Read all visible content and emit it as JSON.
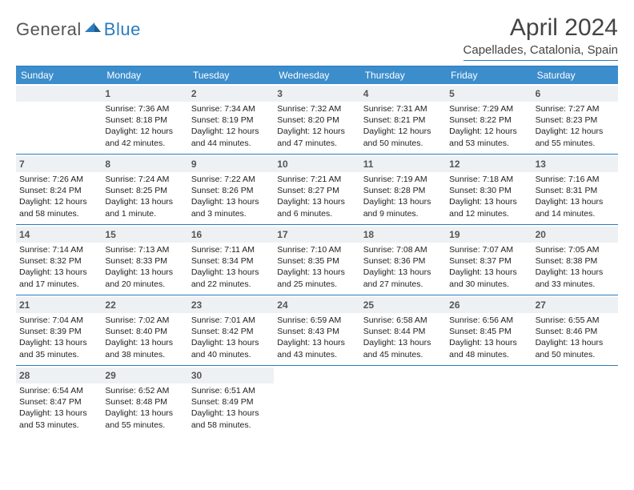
{
  "logo": {
    "text1": "General",
    "text2": "Blue"
  },
  "title": "April 2024",
  "location": "Capellades, Catalonia, Spain",
  "colors": {
    "brand_blue": "#3c8dcc",
    "rule_blue": "#2b7bbf",
    "daynum_bg": "#eef1f3",
    "text_dark": "#222222",
    "text_mid": "#555555",
    "page_bg": "#ffffff"
  },
  "weekdays": [
    "Sunday",
    "Monday",
    "Tuesday",
    "Wednesday",
    "Thursday",
    "Friday",
    "Saturday"
  ],
  "first_weekday_offset": 1,
  "days": [
    {
      "n": 1,
      "sunrise": "7:36 AM",
      "sunset": "8:18 PM",
      "daylight": "12 hours and 42 minutes."
    },
    {
      "n": 2,
      "sunrise": "7:34 AM",
      "sunset": "8:19 PM",
      "daylight": "12 hours and 44 minutes."
    },
    {
      "n": 3,
      "sunrise": "7:32 AM",
      "sunset": "8:20 PM",
      "daylight": "12 hours and 47 minutes."
    },
    {
      "n": 4,
      "sunrise": "7:31 AM",
      "sunset": "8:21 PM",
      "daylight": "12 hours and 50 minutes."
    },
    {
      "n": 5,
      "sunrise": "7:29 AM",
      "sunset": "8:22 PM",
      "daylight": "12 hours and 53 minutes."
    },
    {
      "n": 6,
      "sunrise": "7:27 AM",
      "sunset": "8:23 PM",
      "daylight": "12 hours and 55 minutes."
    },
    {
      "n": 7,
      "sunrise": "7:26 AM",
      "sunset": "8:24 PM",
      "daylight": "12 hours and 58 minutes."
    },
    {
      "n": 8,
      "sunrise": "7:24 AM",
      "sunset": "8:25 PM",
      "daylight": "13 hours and 1 minute."
    },
    {
      "n": 9,
      "sunrise": "7:22 AM",
      "sunset": "8:26 PM",
      "daylight": "13 hours and 3 minutes."
    },
    {
      "n": 10,
      "sunrise": "7:21 AM",
      "sunset": "8:27 PM",
      "daylight": "13 hours and 6 minutes."
    },
    {
      "n": 11,
      "sunrise": "7:19 AM",
      "sunset": "8:28 PM",
      "daylight": "13 hours and 9 minutes."
    },
    {
      "n": 12,
      "sunrise": "7:18 AM",
      "sunset": "8:30 PM",
      "daylight": "13 hours and 12 minutes."
    },
    {
      "n": 13,
      "sunrise": "7:16 AM",
      "sunset": "8:31 PM",
      "daylight": "13 hours and 14 minutes."
    },
    {
      "n": 14,
      "sunrise": "7:14 AM",
      "sunset": "8:32 PM",
      "daylight": "13 hours and 17 minutes."
    },
    {
      "n": 15,
      "sunrise": "7:13 AM",
      "sunset": "8:33 PM",
      "daylight": "13 hours and 20 minutes."
    },
    {
      "n": 16,
      "sunrise": "7:11 AM",
      "sunset": "8:34 PM",
      "daylight": "13 hours and 22 minutes."
    },
    {
      "n": 17,
      "sunrise": "7:10 AM",
      "sunset": "8:35 PM",
      "daylight": "13 hours and 25 minutes."
    },
    {
      "n": 18,
      "sunrise": "7:08 AM",
      "sunset": "8:36 PM",
      "daylight": "13 hours and 27 minutes."
    },
    {
      "n": 19,
      "sunrise": "7:07 AM",
      "sunset": "8:37 PM",
      "daylight": "13 hours and 30 minutes."
    },
    {
      "n": 20,
      "sunrise": "7:05 AM",
      "sunset": "8:38 PM",
      "daylight": "13 hours and 33 minutes."
    },
    {
      "n": 21,
      "sunrise": "7:04 AM",
      "sunset": "8:39 PM",
      "daylight": "13 hours and 35 minutes."
    },
    {
      "n": 22,
      "sunrise": "7:02 AM",
      "sunset": "8:40 PM",
      "daylight": "13 hours and 38 minutes."
    },
    {
      "n": 23,
      "sunrise": "7:01 AM",
      "sunset": "8:42 PM",
      "daylight": "13 hours and 40 minutes."
    },
    {
      "n": 24,
      "sunrise": "6:59 AM",
      "sunset": "8:43 PM",
      "daylight": "13 hours and 43 minutes."
    },
    {
      "n": 25,
      "sunrise": "6:58 AM",
      "sunset": "8:44 PM",
      "daylight": "13 hours and 45 minutes."
    },
    {
      "n": 26,
      "sunrise": "6:56 AM",
      "sunset": "8:45 PM",
      "daylight": "13 hours and 48 minutes."
    },
    {
      "n": 27,
      "sunrise": "6:55 AM",
      "sunset": "8:46 PM",
      "daylight": "13 hours and 50 minutes."
    },
    {
      "n": 28,
      "sunrise": "6:54 AM",
      "sunset": "8:47 PM",
      "daylight": "13 hours and 53 minutes."
    },
    {
      "n": 29,
      "sunrise": "6:52 AM",
      "sunset": "8:48 PM",
      "daylight": "13 hours and 55 minutes."
    },
    {
      "n": 30,
      "sunrise": "6:51 AM",
      "sunset": "8:49 PM",
      "daylight": "13 hours and 58 minutes."
    }
  ],
  "labels": {
    "sunrise": "Sunrise:",
    "sunset": "Sunset:",
    "daylight": "Daylight:"
  }
}
